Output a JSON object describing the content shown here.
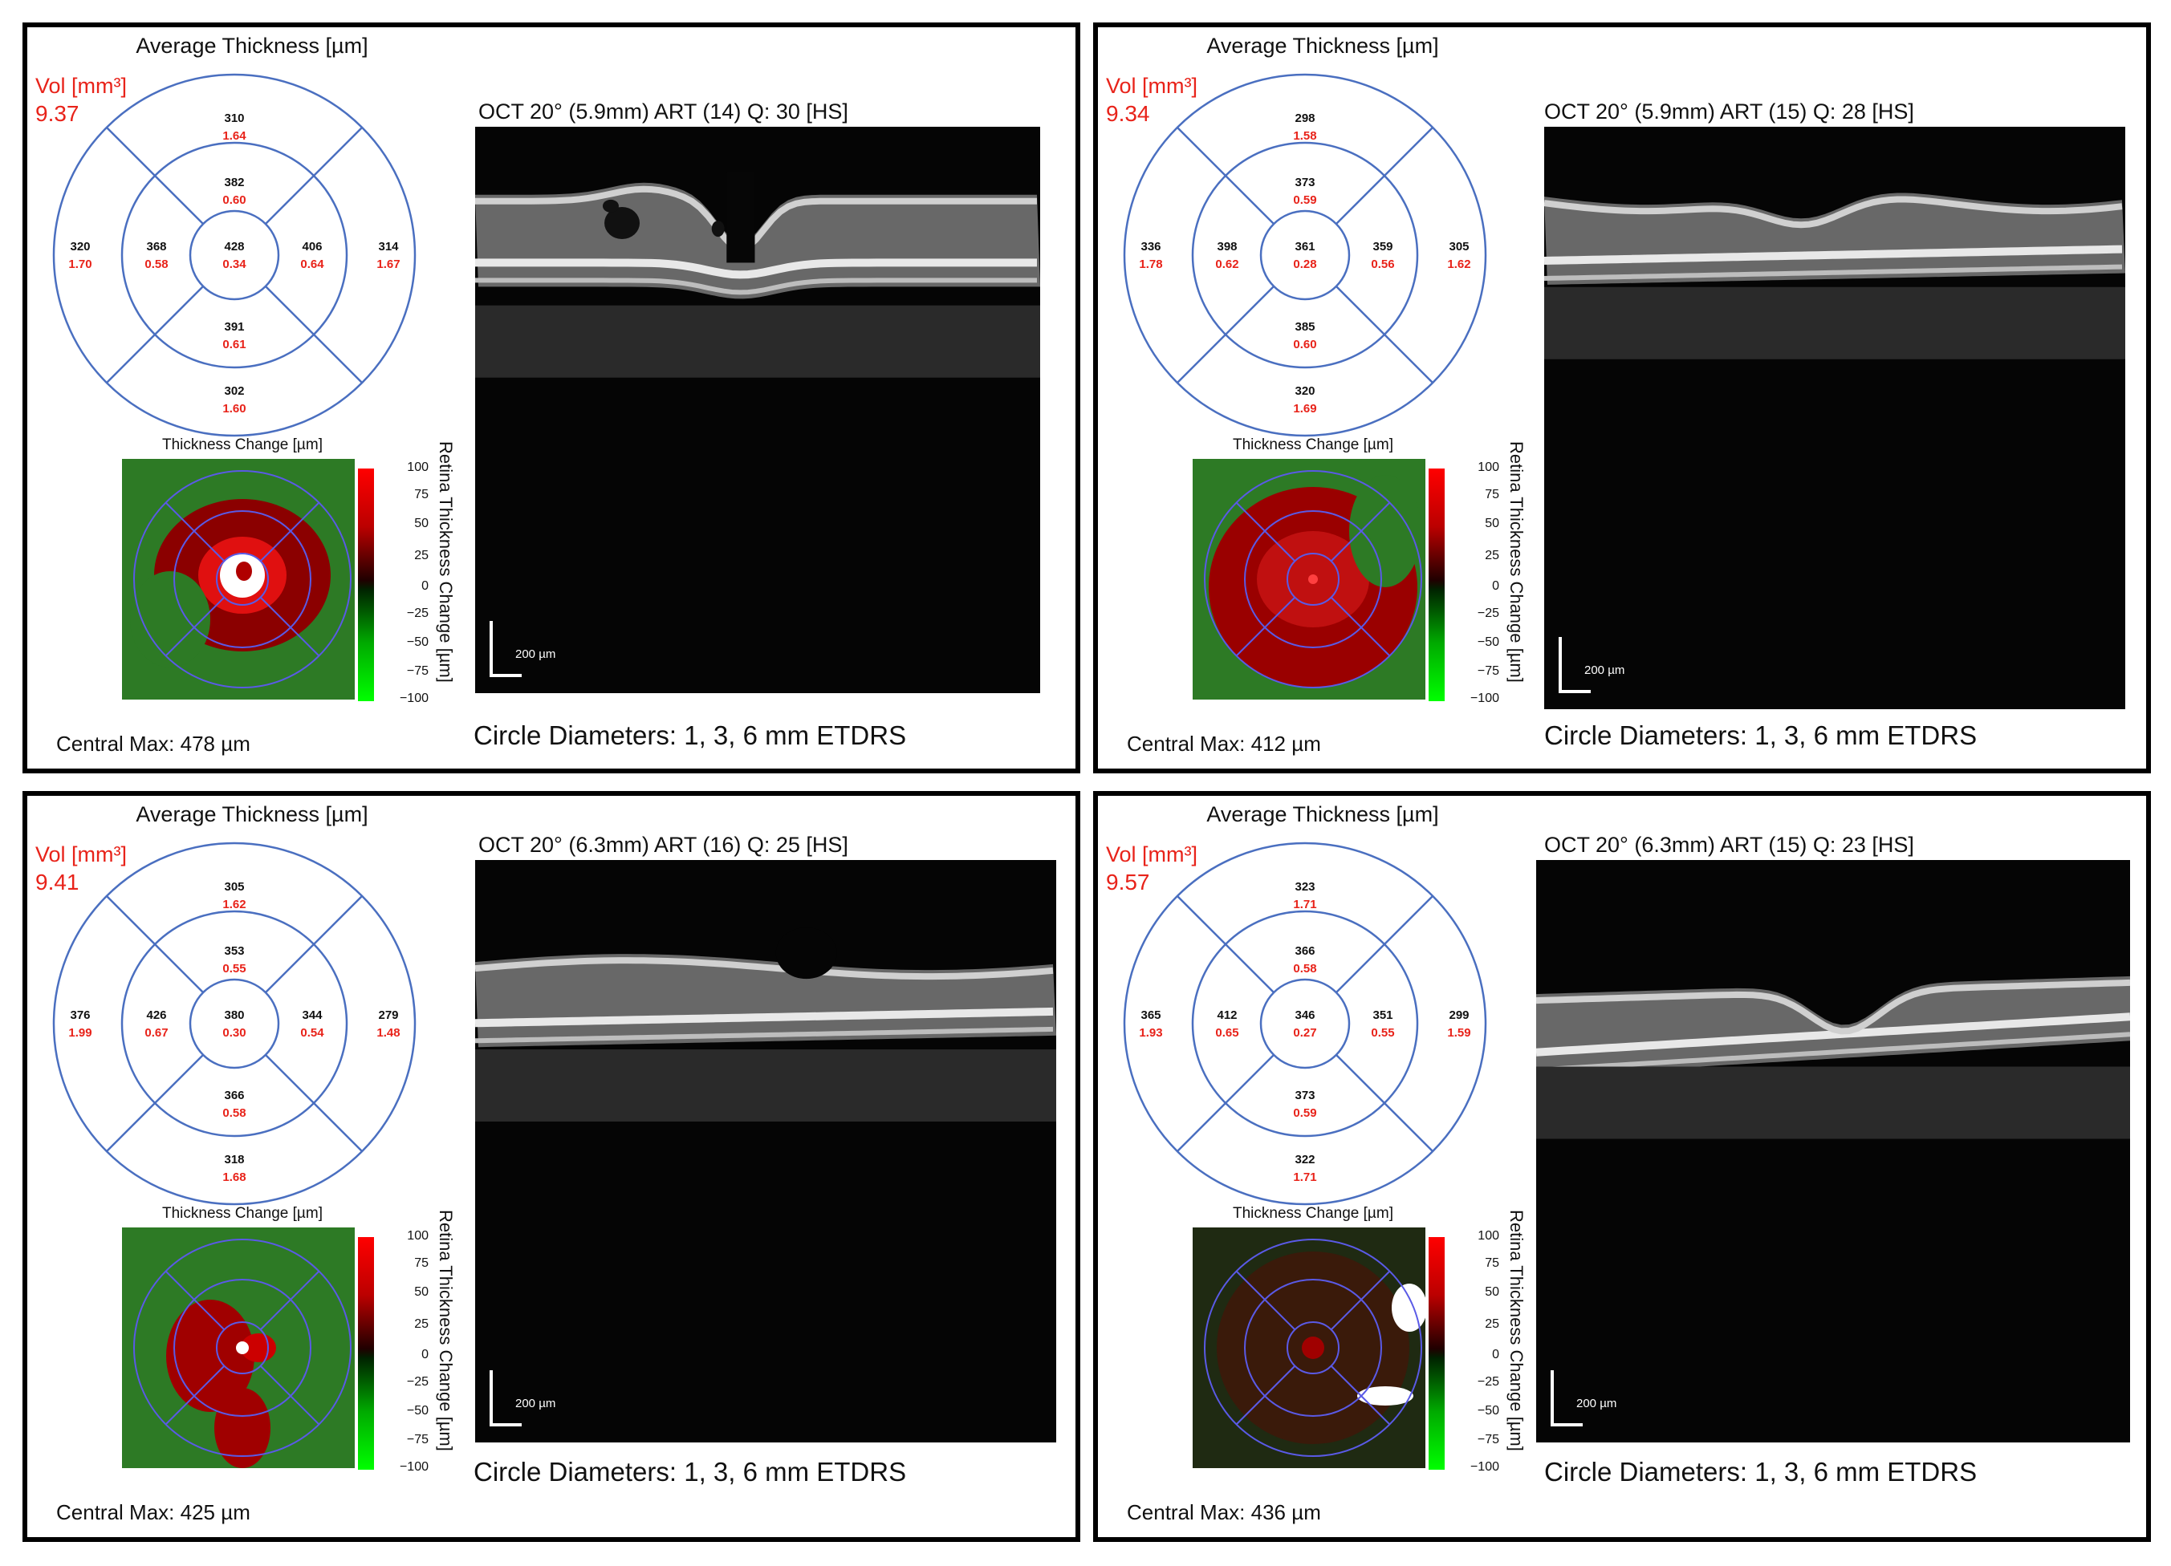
{
  "panels": [
    {
      "avg_title": "Average Thickness [µm]",
      "vol_label": "Vol [mm³]",
      "vol_value": "9.37",
      "etdrs": {
        "center": {
          "t": "428",
          "v": "0.34"
        },
        "inner_sup": {
          "t": "382",
          "v": "0.60"
        },
        "inner_inf": {
          "t": "391",
          "v": "0.61"
        },
        "inner_left": {
          "t": "368",
          "v": "0.58"
        },
        "inner_right": {
          "t": "406",
          "v": "0.64"
        },
        "outer_sup": {
          "t": "310",
          "v": "1.64"
        },
        "outer_inf": {
          "t": "302",
          "v": "1.60"
        },
        "outer_left": {
          "t": "320",
          "v": "1.70"
        },
        "outer_right": {
          "t": "314",
          "v": "1.67"
        }
      },
      "change_title": "Thickness Change [µm]",
      "scale_ticks": [
        "100",
        "75",
        "50",
        "25",
        "0",
        "−25",
        "−50",
        "−75",
        "−100"
      ],
      "retina_label": "Retina Thickness Change [µm]",
      "central_max": "Central Max: 478 µm",
      "oct_title": "OCT 20° (5.9mm) ART (14) Q: 30 [HS]",
      "scale_text": "200 µm",
      "circle_diam": "Circle Diameters: 1, 3, 6 mm ETDRS"
    },
    {
      "avg_title": "Average Thickness [µm]",
      "vol_label": "Vol [mm³]",
      "vol_value": "9.34",
      "etdrs": {
        "center": {
          "t": "361",
          "v": "0.28"
        },
        "inner_sup": {
          "t": "373",
          "v": "0.59"
        },
        "inner_inf": {
          "t": "385",
          "v": "0.60"
        },
        "inner_left": {
          "t": "398",
          "v": "0.62"
        },
        "inner_right": {
          "t": "359",
          "v": "0.56"
        },
        "outer_sup": {
          "t": "298",
          "v": "1.58"
        },
        "outer_inf": {
          "t": "320",
          "v": "1.69"
        },
        "outer_left": {
          "t": "336",
          "v": "1.78"
        },
        "outer_right": {
          "t": "305",
          "v": "1.62"
        }
      },
      "change_title": "Thickness Change [µm]",
      "scale_ticks": [
        "100",
        "75",
        "50",
        "25",
        "0",
        "−25",
        "−50",
        "−75",
        "−100"
      ],
      "retina_label": "Retina Thickness Change [µm]",
      "central_max": "Central Max: 412 µm",
      "oct_title": "OCT 20° (5.9mm) ART (15) Q: 28 [HS]",
      "scale_text": "200 µm",
      "circle_diam": "Circle Diameters: 1, 3, 6 mm ETDRS"
    },
    {
      "avg_title": "Average Thickness [µm]",
      "vol_label": "Vol [mm³]",
      "vol_value": "9.41",
      "etdrs": {
        "center": {
          "t": "380",
          "v": "0.30"
        },
        "inner_sup": {
          "t": "353",
          "v": "0.55"
        },
        "inner_inf": {
          "t": "366",
          "v": "0.58"
        },
        "inner_left": {
          "t": "426",
          "v": "0.67"
        },
        "inner_right": {
          "t": "344",
          "v": "0.54"
        },
        "outer_sup": {
          "t": "305",
          "v": "1.62"
        },
        "outer_inf": {
          "t": "318",
          "v": "1.68"
        },
        "outer_left": {
          "t": "376",
          "v": "1.99"
        },
        "outer_right": {
          "t": "279",
          "v": "1.48"
        }
      },
      "change_title": "Thickness Change [µm]",
      "scale_ticks": [
        "100",
        "75",
        "50",
        "25",
        "0",
        "−25",
        "−50",
        "−75",
        "−100"
      ],
      "retina_label": "Retina Thickness Change [µm]",
      "central_max": "Central Max: 425 µm",
      "oct_title": "OCT 20° (6.3mm) ART (16) Q: 25 [HS]",
      "scale_text": "200 µm",
      "circle_diam": "Circle Diameters: 1, 3, 6 mm ETDRS"
    },
    {
      "avg_title": "Average Thickness [µm]",
      "vol_label": "Vol [mm³]",
      "vol_value": "9.57",
      "etdrs": {
        "center": {
          "t": "346",
          "v": "0.27"
        },
        "inner_sup": {
          "t": "366",
          "v": "0.58"
        },
        "inner_inf": {
          "t": "373",
          "v": "0.59"
        },
        "inner_left": {
          "t": "412",
          "v": "0.65"
        },
        "inner_right": {
          "t": "351",
          "v": "0.55"
        },
        "outer_sup": {
          "t": "323",
          "v": "1.71"
        },
        "outer_inf": {
          "t": "322",
          "v": "1.71"
        },
        "outer_left": {
          "t": "365",
          "v": "1.93"
        },
        "outer_right": {
          "t": "299",
          "v": "1.59"
        }
      },
      "change_title": "Thickness Change [µm]",
      "scale_ticks": [
        "100",
        "75",
        "50",
        "25",
        "0",
        "−25",
        "−50",
        "−75",
        "−100"
      ],
      "retina_label": "Retina Thickness Change [µm]",
      "central_max": "Central Max: 436 µm",
      "oct_title": "OCT 20° (6.3mm) ART (15) Q: 23 [HS]",
      "scale_text": "200 µm",
      "circle_diam": "Circle Diameters: 1, 3, 6 mm ETDRS"
    }
  ]
}
